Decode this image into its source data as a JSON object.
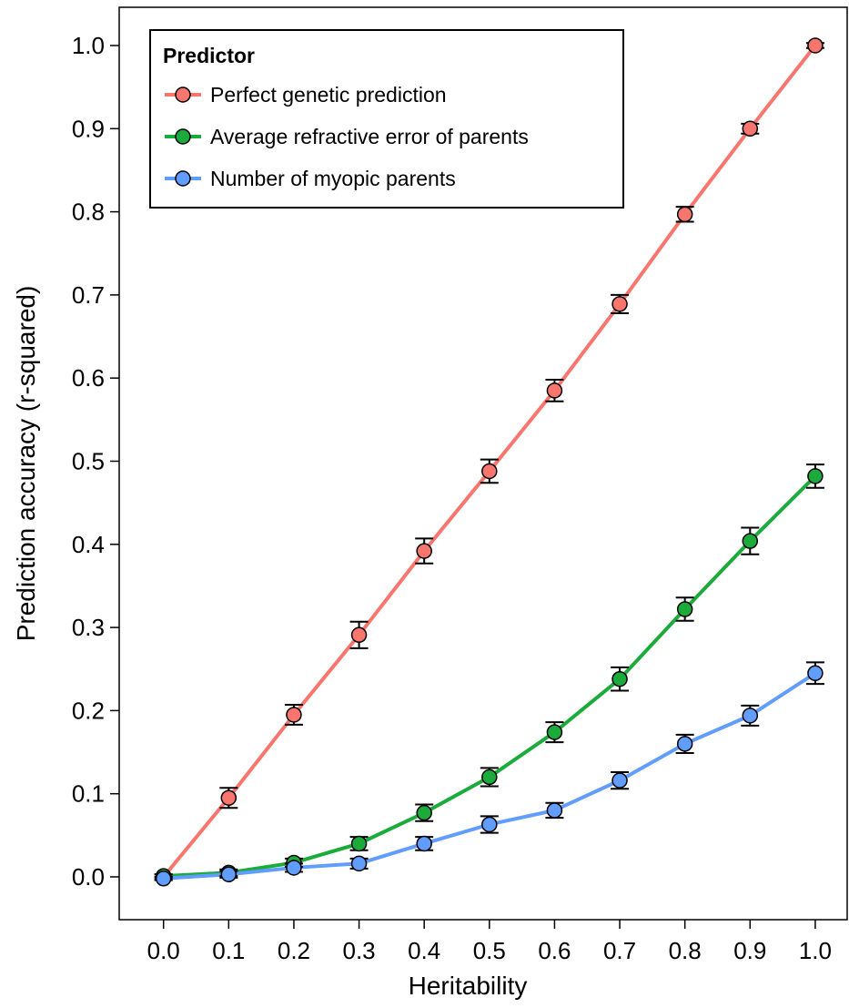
{
  "chart_data": {
    "type": "line",
    "x_label": "Heritability",
    "y_label": "Prediction accuracy (r-squared)",
    "legend_title": "Predictor",
    "legend_position": "top-left",
    "x": [
      0,
      0.1,
      0.2,
      0.3,
      0.4,
      0.5,
      0.6,
      0.7,
      0.8,
      0.9,
      1
    ],
    "series": [
      {
        "name": "Perfect genetic prediction",
        "color": "#f8766d",
        "values": [
          0,
          0.095,
          0.195,
          0.291,
          0.392,
          0.488,
          0.585,
          0.689,
          0.797,
          0.9,
          1
        ],
        "errors": [
          0.003,
          0.012,
          0.012,
          0.016,
          0.015,
          0.014,
          0.013,
          0.011,
          0.009,
          0.006,
          0.003
        ]
      },
      {
        "name": "Average refractive error of parents",
        "color": "#1aab3a",
        "values": [
          0.001,
          0.005,
          0.017,
          0.04,
          0.077,
          0.12,
          0.174,
          0.238,
          0.322,
          0.404,
          0.482
        ],
        "errors": [
          0.002,
          0.004,
          0.005,
          0.008,
          0.01,
          0.011,
          0.012,
          0.014,
          0.014,
          0.016,
          0.014
        ]
      },
      {
        "name": "Number of myopic parents",
        "color": "#619cff",
        "values": [
          -0.002,
          0.003,
          0.011,
          0.016,
          0.04,
          0.063,
          0.08,
          0.116,
          0.16,
          0.194,
          0.245
        ],
        "errors": [
          0.002,
          0.004,
          0.005,
          0.006,
          0.008,
          0.01,
          0.009,
          0.01,
          0.011,
          0.012,
          0.013
        ]
      }
    ],
    "xlim": [
      -0.068,
      1.049
    ],
    "ylim": [
      -0.0515,
      1.046
    ],
    "xticks": [
      {
        "value": 0,
        "label": "0.0"
      },
      0.1,
      0.2,
      0.3,
      0.4,
      0.5,
      0.6,
      0.7,
      0.8,
      0.9,
      {
        "value": 1,
        "label": "1.0"
      }
    ],
    "yticks": [
      {
        "value": 0,
        "label": "0.0"
      },
      0.1,
      0.2,
      0.3,
      0.4,
      0.5,
      0.6,
      0.7,
      0.8,
      0.9,
      {
        "value": 1,
        "label": "1.0"
      }
    ]
  }
}
